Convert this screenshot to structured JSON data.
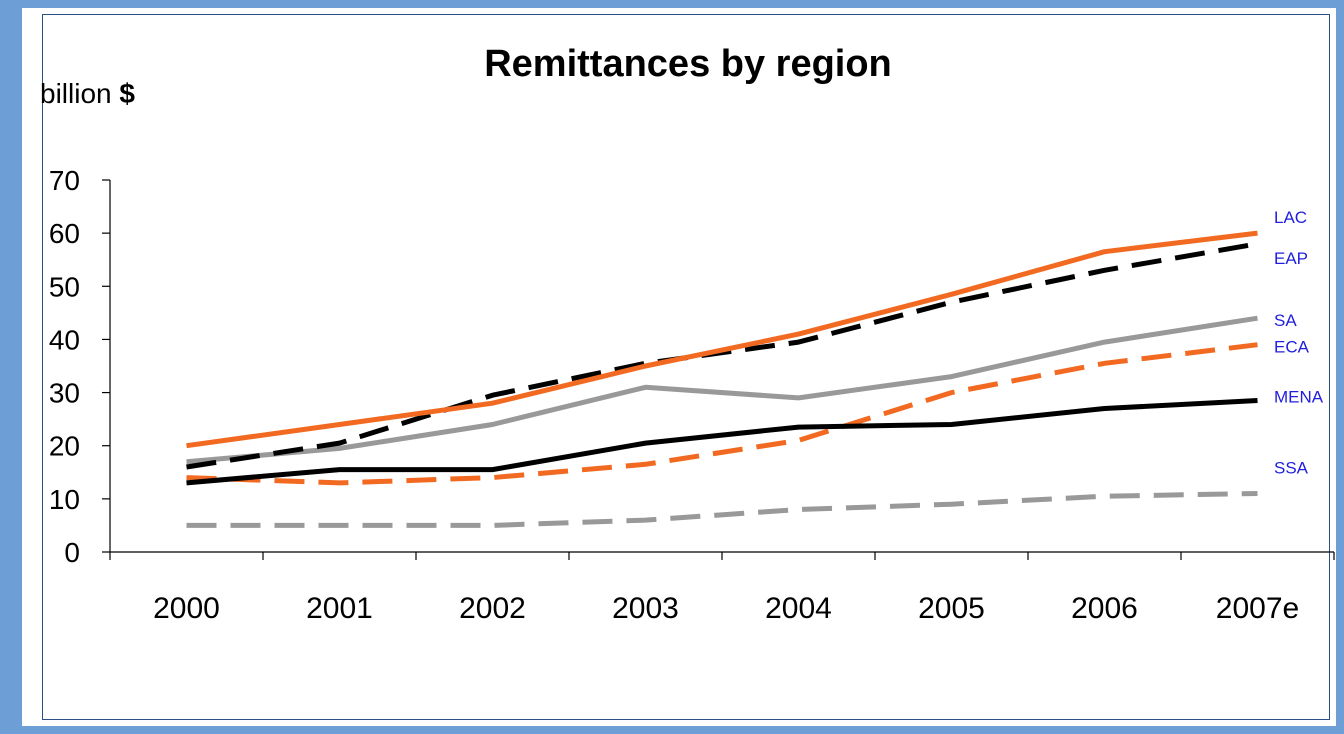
{
  "chart_data": {
    "type": "line",
    "title": "Remittances by region",
    "ylabel_prefix": "billion ",
    "ylabel_unit": "$",
    "categories": [
      "2000",
      "2001",
      "2002",
      "2003",
      "2004",
      "2005",
      "2006",
      "2007e"
    ],
    "ylim": [
      0,
      70
    ],
    "yticks": [
      "0",
      "10",
      "20",
      "30",
      "40",
      "50",
      "60",
      "70"
    ],
    "grid": false,
    "legend": "inline-right",
    "series": [
      {
        "name": "LAC",
        "values": [
          20,
          24,
          28,
          35,
          41,
          48.5,
          56.5,
          60
        ],
        "color": "#f26a21",
        "dash": "solid"
      },
      {
        "name": "EAP",
        "values": [
          16,
          20.5,
          29.5,
          35.5,
          39.5,
          47,
          53,
          58
        ],
        "color": "#000000",
        "dash": "dashed"
      },
      {
        "name": "SA",
        "values": [
          17,
          19.5,
          24,
          31,
          29,
          33,
          39.5,
          44
        ],
        "color": "#999999",
        "dash": "solid"
      },
      {
        "name": "ECA",
        "values": [
          14,
          13,
          14,
          16.5,
          21,
          30,
          35.5,
          39
        ],
        "color": "#f26a21",
        "dash": "dashed"
      },
      {
        "name": "MENA",
        "values": [
          13,
          15.5,
          15.5,
          20.5,
          23.5,
          24,
          27,
          28.5
        ],
        "color": "#000000",
        "dash": "solid"
      },
      {
        "name": "SSA",
        "values": [
          5,
          5,
          5,
          6,
          8,
          9,
          10.5,
          11
        ],
        "color": "#999999",
        "dash": "dashed"
      }
    ]
  }
}
